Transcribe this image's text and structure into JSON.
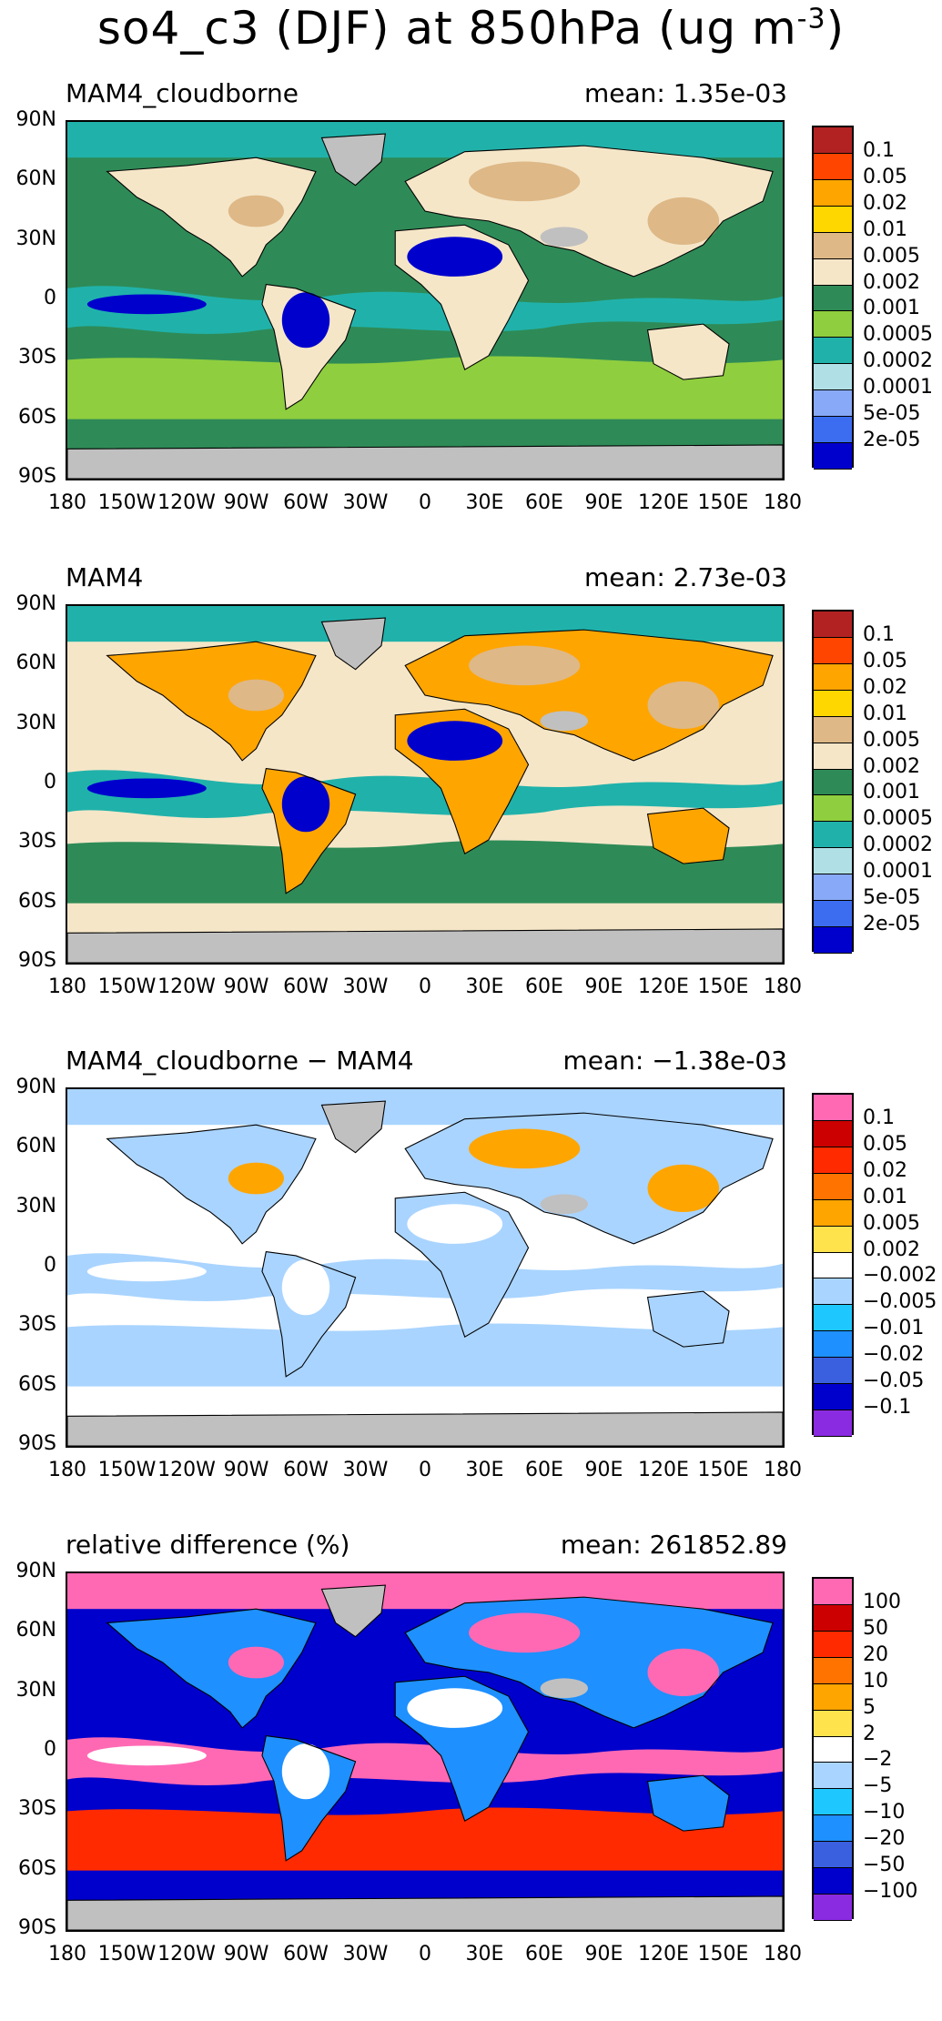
{
  "title": {
    "main": "so4_c3 (DJF) at 850hPa (ug m",
    "exponent": "-3",
    "close": ")"
  },
  "axes": {
    "y_ticks": [
      "90N",
      "60N",
      "30N",
      "0",
      "30S",
      "60S",
      "90S"
    ],
    "x_ticks": [
      "180",
      "150W",
      "120W",
      "90W",
      "60W",
      "30W",
      "0",
      "30E",
      "60E",
      "90E",
      "120E",
      "150E",
      "180"
    ]
  },
  "panels": [
    {
      "label": "MAM4_cloudborne",
      "mean": "mean: 1.35e-03",
      "colorbar": {
        "colors": [
          "#b22222",
          "#ff4500",
          "#ffa500",
          "#ffd700",
          "#deb887",
          "#f5e6c8",
          "#2e8b57",
          "#8fce3f",
          "#20b2aa",
          "#b0e0e6",
          "#87a9f7",
          "#3c6cf0",
          "#0000cd"
        ],
        "labels": [
          "0.1",
          "0.05",
          "0.02",
          "0.01",
          "0.005",
          "0.002",
          "0.001",
          "0.0005",
          "0.0002",
          "0.0001",
          "5e-05",
          "2e-05"
        ]
      },
      "map_colors": {
        "ocean": "#2e8b57",
        "land_a": "#f5e6c8",
        "land_b": "#0000cd",
        "tropics": "#20b2aa",
        "south": "#8fce3f",
        "high": "#deb887",
        "cap": "#c0c0c0"
      }
    },
    {
      "label": "MAM4",
      "mean": "mean: 2.73e-03",
      "colorbar": {
        "colors": [
          "#b22222",
          "#ff4500",
          "#ffa500",
          "#ffd700",
          "#deb887",
          "#f5e6c8",
          "#2e8b57",
          "#8fce3f",
          "#20b2aa",
          "#b0e0e6",
          "#87a9f7",
          "#3c6cf0",
          "#0000cd"
        ],
        "labels": [
          "0.1",
          "0.05",
          "0.02",
          "0.01",
          "0.005",
          "0.002",
          "0.001",
          "0.0005",
          "0.0002",
          "0.0001",
          "5e-05",
          "2e-05"
        ]
      },
      "map_colors": {
        "ocean": "#f5e6c8",
        "land_a": "#ffa500",
        "land_b": "#0000cd",
        "tropics": "#20b2aa",
        "south": "#2e8b57",
        "high": "#deb887",
        "cap": "#c0c0c0"
      }
    },
    {
      "label": "MAM4_cloudborne − MAM4",
      "mean": "mean: −1.38e-03",
      "colorbar": {
        "colors": [
          "#ff69b4",
          "#cc0000",
          "#ff2a00",
          "#ff7300",
          "#ffa500",
          "#ffe34d",
          "#ffffff",
          "#a9d4ff",
          "#1ec8ff",
          "#1e90ff",
          "#3a5fdf",
          "#0000cd",
          "#8a2be2"
        ],
        "labels": [
          "0.1",
          "0.05",
          "0.02",
          "0.01",
          "0.005",
          "0.002",
          "−0.002",
          "−0.005",
          "−0.01",
          "−0.02",
          "−0.05",
          "−0.1"
        ]
      },
      "map_colors": {
        "ocean": "#ffffff",
        "land_a": "#a9d4ff",
        "land_b": "#ffffff",
        "tropics": "#a9d4ff",
        "south": "#a9d4ff",
        "high": "#ffa500",
        "cap": "#c0c0c0"
      }
    },
    {
      "label": "relative difference (%)",
      "mean": "mean: 261852.89",
      "colorbar": {
        "colors": [
          "#ff69b4",
          "#cc0000",
          "#ff2a00",
          "#ff7300",
          "#ffa500",
          "#ffe34d",
          "#ffffff",
          "#a9d4ff",
          "#1ec8ff",
          "#1e90ff",
          "#3a5fdf",
          "#0000cd",
          "#8a2be2"
        ],
        "labels": [
          "100",
          "50",
          "20",
          "10",
          "5",
          "2",
          "−2",
          "−5",
          "−10",
          "−20",
          "−50",
          "−100"
        ]
      },
      "map_colors": {
        "ocean": "#0000cd",
        "land_a": "#1e90ff",
        "land_b": "#ffffff",
        "tropics": "#ff69b4",
        "south": "#ff2a00",
        "high": "#ff69b4",
        "cap": "#c0c0c0"
      }
    }
  ]
}
